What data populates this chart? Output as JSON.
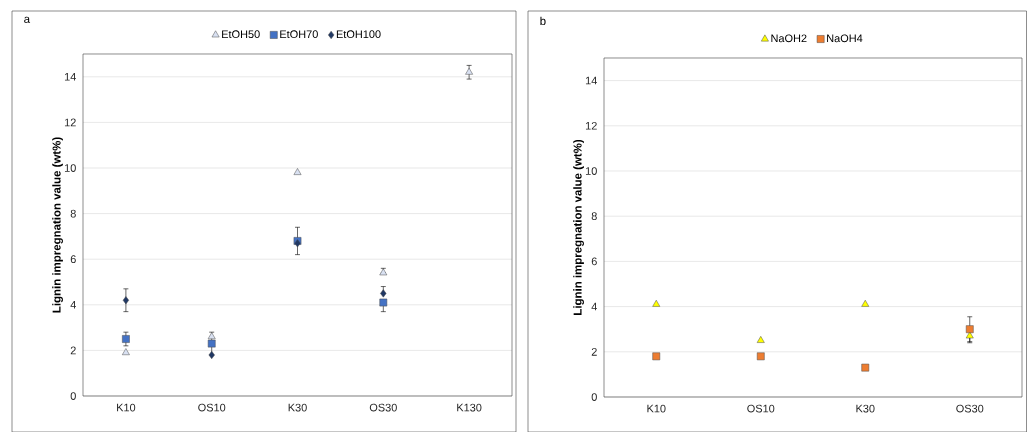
{
  "chart_data": [
    {
      "type": "scatter",
      "title": "a",
      "ylabel": "Lignin impregnation value (wt%)",
      "categories": [
        "K10",
        "OS10",
        "K30",
        "OS30",
        "K130"
      ],
      "ylim": [
        0,
        15
      ],
      "yticks": [
        0,
        2,
        4,
        6,
        8,
        10,
        12,
        14
      ],
      "grid": "y",
      "legend": "top",
      "series": [
        {
          "name": "EtOH50",
          "color": "#d9e1f2",
          "marker": "triangle",
          "values": [
            1.9,
            2.6,
            9.8,
            5.4,
            14.2
          ],
          "errors": [
            null,
            null,
            null,
            [
              5.4,
              5.6
            ],
            0.3
          ]
        },
        {
          "name": "EtOH70",
          "color": "#4472c4",
          "marker": "square",
          "values": [
            2.5,
            2.3,
            6.8,
            4.1,
            null
          ],
          "errors": [
            0.3,
            0.5,
            0.6,
            [
              3.7,
              4.1
            ],
            null
          ]
        },
        {
          "name": "EtOH100",
          "color": "#203864",
          "marker": "diamond",
          "values": [
            4.2,
            1.8,
            6.7,
            4.5,
            null
          ],
          "errors": [
            0.5,
            null,
            null,
            [
              4.5,
              4.8
            ],
            null
          ]
        }
      ]
    },
    {
      "type": "scatter",
      "title": "b",
      "ylabel": "Lignin impregnation value (wt%)",
      "categories": [
        "K10",
        "OS10",
        "K30",
        "OS30"
      ],
      "ylim": [
        0,
        15
      ],
      "yticks": [
        0,
        2,
        4,
        6,
        8,
        10,
        12,
        14
      ],
      "grid": "y",
      "legend": "top",
      "series": [
        {
          "name": "NaOH2",
          "color": "#ffff00",
          "marker": "triangle",
          "values": [
            4.1,
            2.5,
            4.1,
            2.7
          ],
          "errors": [
            null,
            null,
            null,
            0.3
          ]
        },
        {
          "name": "NaOH4",
          "color": "#ed7d31",
          "marker": "square",
          "values": [
            1.8,
            1.8,
            1.3,
            3.0
          ],
          "errors": [
            null,
            null,
            null,
            0.55
          ]
        }
      ]
    }
  ]
}
